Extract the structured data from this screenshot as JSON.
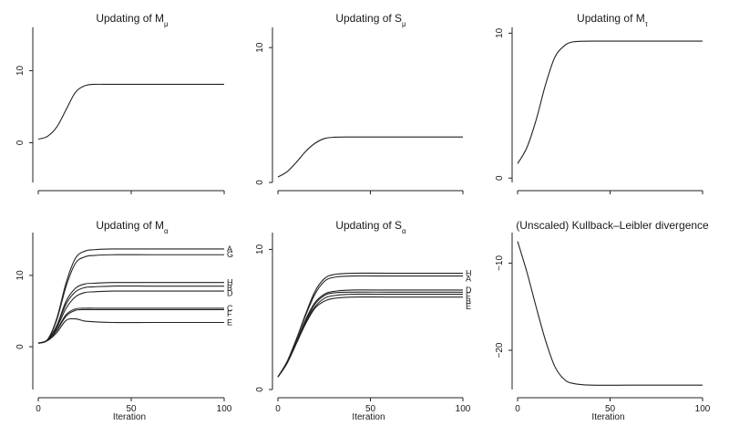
{
  "chart_data": [
    {
      "type": "line",
      "title": "Updating of M",
      "title_sub": "μ",
      "xlabel": "",
      "ylabel": "",
      "xlim": [
        0,
        100
      ],
      "ylim": [
        -5.5,
        16
      ],
      "yticks": [
        0,
        10
      ],
      "ytick_labels": [
        "0",
        "10"
      ],
      "xticks": [
        0,
        50,
        100
      ],
      "xtick_labels": [],
      "series": [
        {
          "name": "",
          "x": [
            0,
            5,
            10,
            15,
            20,
            25,
            30,
            40,
            60,
            80,
            100
          ],
          "y": [
            0.5,
            0.9,
            2.2,
            4.6,
            7.0,
            7.9,
            8.1,
            8.1,
            8.1,
            8.1,
            8.1
          ]
        }
      ]
    },
    {
      "type": "line",
      "title": "Updating of S",
      "title_sub": "μ",
      "xlabel": "",
      "ylabel": "",
      "xlim": [
        0,
        100
      ],
      "ylim": [
        0,
        11.5
      ],
      "yticks": [
        0,
        10
      ],
      "ytick_labels": [
        "0",
        "10"
      ],
      "xticks": [
        0,
        50,
        100
      ],
      "xtick_labels": [],
      "series": [
        {
          "name": "",
          "x": [
            0,
            5,
            10,
            15,
            20,
            25,
            30,
            40,
            60,
            80,
            100
          ],
          "y": [
            0.4,
            0.8,
            1.5,
            2.3,
            2.9,
            3.25,
            3.35,
            3.37,
            3.37,
            3.37,
            3.37
          ]
        }
      ]
    },
    {
      "type": "line",
      "title": "Updating of M",
      "title_sub": "τ",
      "xlabel": "",
      "ylabel": "",
      "xlim": [
        0,
        100
      ],
      "ylim": [
        -0.3,
        10.4
      ],
      "yticks": [
        0,
        10
      ],
      "ytick_labels": [
        "0",
        "10"
      ],
      "xticks": [
        0,
        50,
        100
      ],
      "xtick_labels": [],
      "series": [
        {
          "name": "",
          "x": [
            0,
            5,
            10,
            15,
            20,
            25,
            30,
            40,
            60,
            80,
            100
          ],
          "y": [
            1.0,
            2.1,
            4.0,
            6.4,
            8.3,
            9.1,
            9.4,
            9.45,
            9.45,
            9.45,
            9.45
          ]
        }
      ]
    },
    {
      "type": "line",
      "title": "Updating of M",
      "title_sub": "α",
      "xlabel": "Iteration",
      "ylabel": "",
      "xlim": [
        0,
        100
      ],
      "ylim": [
        -6,
        16
      ],
      "yticks": [
        0,
        10
      ],
      "ytick_labels": [
        "0",
        "10"
      ],
      "xticks": [
        0,
        50,
        100
      ],
      "xtick_labels": [
        "0",
        "50",
        "100"
      ],
      "series": [
        {
          "name": "A",
          "x": [
            0,
            5,
            10,
            15,
            20,
            25,
            30,
            40,
            60,
            80,
            100
          ],
          "y": [
            0.5,
            1.0,
            4.0,
            9.0,
            12.4,
            13.4,
            13.6,
            13.7,
            13.7,
            13.7,
            13.7
          ]
        },
        {
          "name": "G",
          "x": [
            0,
            5,
            10,
            15,
            20,
            25,
            30,
            40,
            60,
            80,
            100
          ],
          "y": [
            0.5,
            1.0,
            3.8,
            8.5,
            11.7,
            12.6,
            12.8,
            12.9,
            12.9,
            12.9,
            12.9
          ]
        },
        {
          "name": "H",
          "x": [
            0,
            5,
            10,
            15,
            20,
            25,
            30,
            40,
            60,
            80,
            100
          ],
          "y": [
            0.5,
            0.95,
            3.0,
            6.4,
            8.2,
            8.8,
            8.9,
            9.0,
            9.0,
            9.0,
            9.0
          ]
        },
        {
          "name": "B",
          "x": [
            0,
            5,
            10,
            15,
            20,
            25,
            30,
            40,
            60,
            80,
            100
          ],
          "y": [
            0.5,
            0.95,
            2.9,
            6.0,
            7.7,
            8.3,
            8.4,
            8.5,
            8.5,
            8.5,
            8.5
          ]
        },
        {
          "name": "D",
          "x": [
            0,
            5,
            10,
            15,
            20,
            25,
            30,
            40,
            60,
            80,
            100
          ],
          "y": [
            0.5,
            0.9,
            2.7,
            5.4,
            7.0,
            7.6,
            7.7,
            7.8,
            7.8,
            7.8,
            7.8
          ]
        },
        {
          "name": "C",
          "x": [
            0,
            5,
            10,
            15,
            20,
            25,
            30,
            40,
            60,
            80,
            100
          ],
          "y": [
            0.5,
            0.9,
            2.4,
            4.5,
            5.3,
            5.4,
            5.4,
            5.4,
            5.4,
            5.4,
            5.4
          ]
        },
        {
          "name": "F",
          "x": [
            0,
            5,
            10,
            15,
            20,
            25,
            30,
            40,
            60,
            80,
            100
          ],
          "y": [
            0.5,
            0.9,
            2.3,
            4.3,
            5.1,
            5.2,
            5.2,
            5.2,
            5.2,
            5.2,
            5.2
          ]
        },
        {
          "name": "E",
          "x": [
            0,
            5,
            10,
            15,
            20,
            25,
            30,
            40,
            60,
            80,
            100
          ],
          "y": [
            0.5,
            0.85,
            2.0,
            3.7,
            3.9,
            3.6,
            3.5,
            3.4,
            3.4,
            3.4,
            3.4
          ]
        }
      ]
    },
    {
      "type": "line",
      "title": "Updating of S",
      "title_sub": "α",
      "xlabel": "Iteration",
      "ylabel": "",
      "xlim": [
        0,
        100
      ],
      "ylim": [
        0,
        11.2
      ],
      "yticks": [
        0,
        10
      ],
      "ytick_labels": [
        "0",
        "10"
      ],
      "xticks": [
        0,
        50,
        100
      ],
      "xtick_labels": [
        "0",
        "50",
        "100"
      ],
      "series": [
        {
          "name": "H",
          "x": [
            0,
            5,
            10,
            15,
            20,
            25,
            30,
            40,
            60,
            80,
            100
          ],
          "y": [
            0.9,
            2.0,
            3.6,
            5.4,
            7.0,
            7.9,
            8.2,
            8.3,
            8.3,
            8.3,
            8.3
          ]
        },
        {
          "name": "A",
          "x": [
            0,
            5,
            10,
            15,
            20,
            25,
            30,
            40,
            60,
            80,
            100
          ],
          "y": [
            0.9,
            2.0,
            3.6,
            5.3,
            6.8,
            7.7,
            8.0,
            8.1,
            8.1,
            8.1,
            8.1
          ]
        },
        {
          "name": "D",
          "x": [
            0,
            5,
            10,
            15,
            20,
            25,
            30,
            40,
            60,
            80,
            100
          ],
          "y": [
            0.9,
            1.9,
            3.4,
            5.0,
            6.2,
            6.8,
            7.0,
            7.1,
            7.1,
            7.1,
            7.1
          ]
        },
        {
          "name": "F",
          "x": [
            0,
            5,
            10,
            15,
            20,
            25,
            30,
            40,
            60,
            80,
            100
          ],
          "y": [
            0.9,
            1.9,
            3.4,
            4.9,
            6.1,
            6.7,
            6.9,
            6.95,
            6.95,
            6.95,
            6.95
          ]
        },
        {
          "name": "B",
          "x": [
            0,
            5,
            10,
            15,
            20,
            25,
            30,
            40,
            60,
            80,
            100
          ],
          "y": [
            0.9,
            1.9,
            3.3,
            4.8,
            5.9,
            6.5,
            6.7,
            6.8,
            6.8,
            6.8,
            6.8
          ]
        },
        {
          "name": "E",
          "x": [
            0,
            5,
            10,
            15,
            20,
            25,
            30,
            40,
            60,
            80,
            100
          ],
          "y": [
            0.9,
            1.9,
            3.3,
            4.7,
            5.8,
            6.3,
            6.5,
            6.6,
            6.6,
            6.6,
            6.6
          ]
        }
      ],
      "label_positions_note": "",
      "end_labels": [
        "H",
        "A",
        "D",
        "F",
        "B",
        "E"
      ]
    },
    {
      "type": "line",
      "title": "(Unscaled) Kullback–Leibler divergence",
      "title_sub": "",
      "xlabel": "Iteration",
      "ylabel": "",
      "xlim": [
        0,
        100
      ],
      "ylim": [
        -24.5,
        -6.5
      ],
      "yticks": [
        -20,
        -10
      ],
      "ytick_labels": [
        "−20",
        "−10"
      ],
      "xticks": [
        0,
        50,
        100
      ],
      "xtick_labels": [
        "0",
        "50",
        "100"
      ],
      "series": [
        {
          "name": "",
          "x": [
            0,
            5,
            10,
            15,
            20,
            25,
            30,
            40,
            60,
            80,
            100
          ],
          "y": [
            -7.5,
            -11.0,
            -15.0,
            -18.8,
            -21.8,
            -23.3,
            -23.8,
            -24.0,
            -24.0,
            -24.0,
            -24.0
          ]
        }
      ]
    }
  ]
}
